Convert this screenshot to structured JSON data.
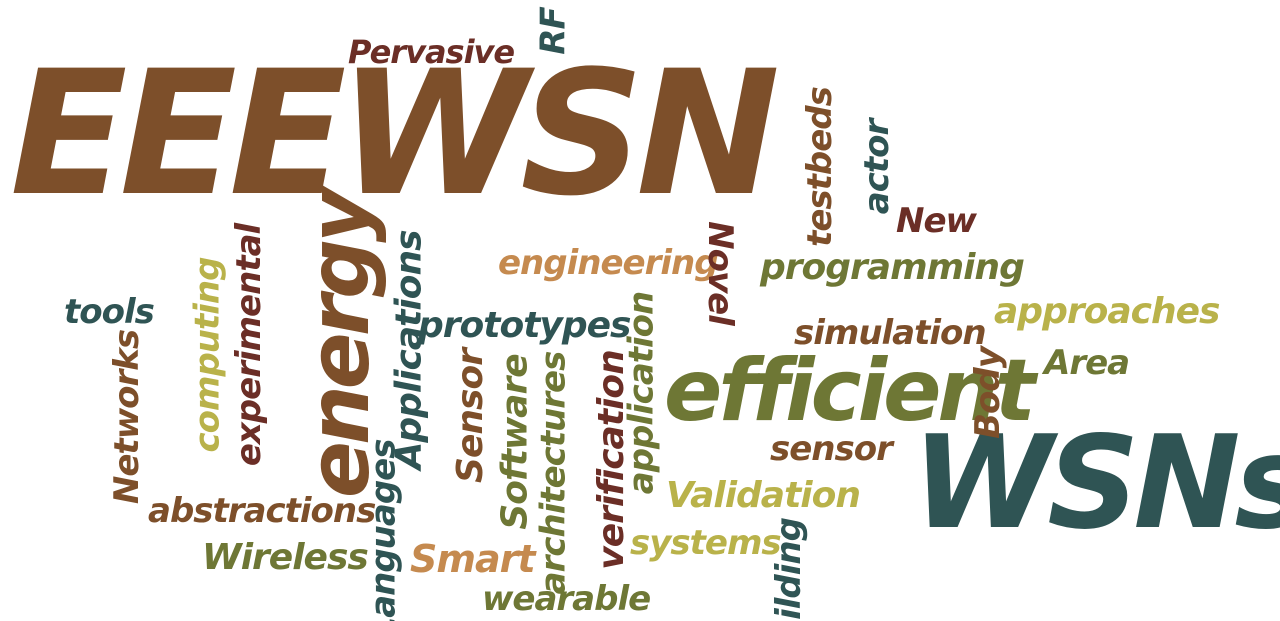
{
  "colors": {
    "brown": "#7d4f2a",
    "dark_red": "#6b2e26",
    "teal": "#2f5454",
    "olive": "#6e7735",
    "khaki": "#b9b24a",
    "tan": "#c58a4f",
    "background": "#ffffff"
  },
  "words": {
    "w1": "EEEWSN",
    "w2": "WSNs",
    "w3": "efficient",
    "w4": "energy",
    "w5": "Pervasive",
    "w6": "RF",
    "w7": "testbeds",
    "w8": "actor",
    "w9": "New",
    "w10": "engineering",
    "w11": "Novel",
    "w12": "programming",
    "w13": "tools",
    "w14": "computing",
    "w15": "experimental",
    "w16": "Applications",
    "w17": "prototypes",
    "w18": "application",
    "w19": "approaches",
    "w20": "simulation",
    "w21": "Area",
    "w22": "Body",
    "w23": "Networks",
    "w24": "Sensor",
    "w25": "Software",
    "w26": "architectures",
    "w27": "verification",
    "w28": "sensor",
    "w29": "Validation",
    "w30": "abstractions",
    "w31": "Languages",
    "w32": "Wireless",
    "w33": "Smart",
    "w34": "systems",
    "w35": "wearable",
    "w36": "ilding"
  }
}
